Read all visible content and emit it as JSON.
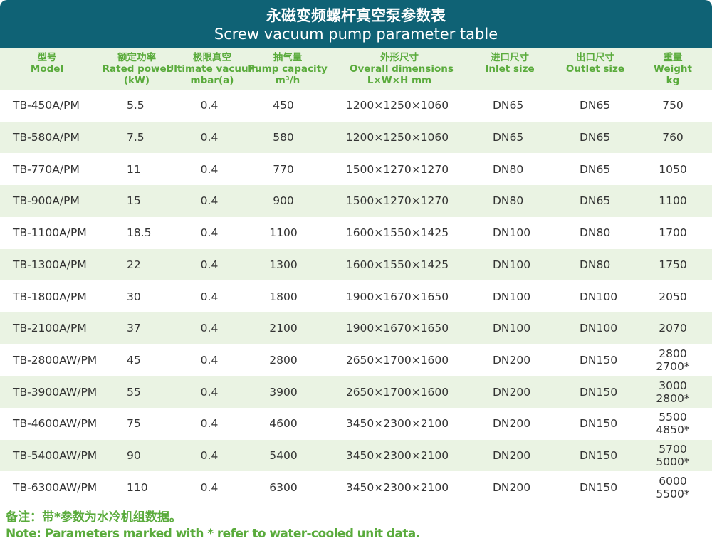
{
  "header": {
    "title_cn": "永磁变频螺杆真空泵参数表",
    "title_en": "Screw vacuum pump parameter table"
  },
  "table": {
    "columns": [
      [
        "型号",
        "Model"
      ],
      [
        "额定功率",
        "Rated power",
        "(kW)"
      ],
      [
        "极限真空",
        "Ultimate vacuum",
        "mbar(a)"
      ],
      [
        "抽气量",
        "Pump capacity",
        "m³/h"
      ],
      [
        "外形尺寸",
        "Overall dimensions",
        "L×W×H mm"
      ],
      [
        "进口尺寸",
        "Inlet size"
      ],
      [
        "出口尺寸",
        "Outlet size"
      ],
      [
        "重量",
        "Weight",
        "kg"
      ]
    ],
    "rows": [
      [
        "TB-450A/PM",
        "5.5",
        "0.4",
        "450",
        "1200×1250×1060",
        "DN65",
        "DN65",
        [
          "750"
        ]
      ],
      [
        "TB-580A/PM",
        "7.5",
        "0.4",
        "580",
        "1200×1250×1060",
        "DN65",
        "DN65",
        [
          "760"
        ]
      ],
      [
        "TB-770A/PM",
        "11",
        "0.4",
        "770",
        "1500×1270×1270",
        "DN80",
        "DN65",
        [
          "1050"
        ]
      ],
      [
        "TB-900A/PM",
        "15",
        "0.4",
        "900",
        "1500×1270×1270",
        "DN80",
        "DN65",
        [
          "1100"
        ]
      ],
      [
        "TB-1100A/PM",
        "18.5",
        "0.4",
        "1100",
        "1600×1550×1425",
        "DN100",
        "DN80",
        [
          "1700"
        ]
      ],
      [
        "TB-1300A/PM",
        "22",
        "0.4",
        "1300",
        "1600×1550×1425",
        "DN100",
        "DN80",
        [
          "1750"
        ]
      ],
      [
        "TB-1800A/PM",
        "30",
        "0.4",
        "1800",
        "1900×1670×1650",
        "DN100",
        "DN100",
        [
          "2050"
        ]
      ],
      [
        "TB-2100A/PM",
        "37",
        "0.4",
        "2100",
        "1900×1670×1650",
        "DN100",
        "DN100",
        [
          "2070"
        ]
      ],
      [
        "TB-2800AW/PM",
        "45",
        "0.4",
        "2800",
        "2650×1700×1600",
        "DN200",
        "DN150",
        [
          "2800",
          "2700*"
        ]
      ],
      [
        "TB-3900AW/PM",
        "55",
        "0.4",
        "3900",
        "2650×1700×1600",
        "DN200",
        "DN150",
        [
          "3000",
          "2800*"
        ]
      ],
      [
        "TB-4600AW/PM",
        "75",
        "0.4",
        "4600",
        "3450×2300×2100",
        "DN200",
        "DN150",
        [
          "5500",
          "4850*"
        ]
      ],
      [
        "TB-5400AW/PM",
        "90",
        "0.4",
        "5400",
        "3450×2300×2100",
        "DN200",
        "DN150",
        [
          "5700",
          "5000*"
        ]
      ],
      [
        "TB-6300AW/PM",
        "110",
        "0.4",
        "6300",
        "3450×2300×2100",
        "DN200",
        "DN150",
        [
          "6000",
          "5500*"
        ]
      ]
    ]
  },
  "footer": {
    "note_cn": "备注：带*参数为水冷机组数据。",
    "note_en": "Note: Parameters marked with * refer to water-cooled unit data."
  }
}
